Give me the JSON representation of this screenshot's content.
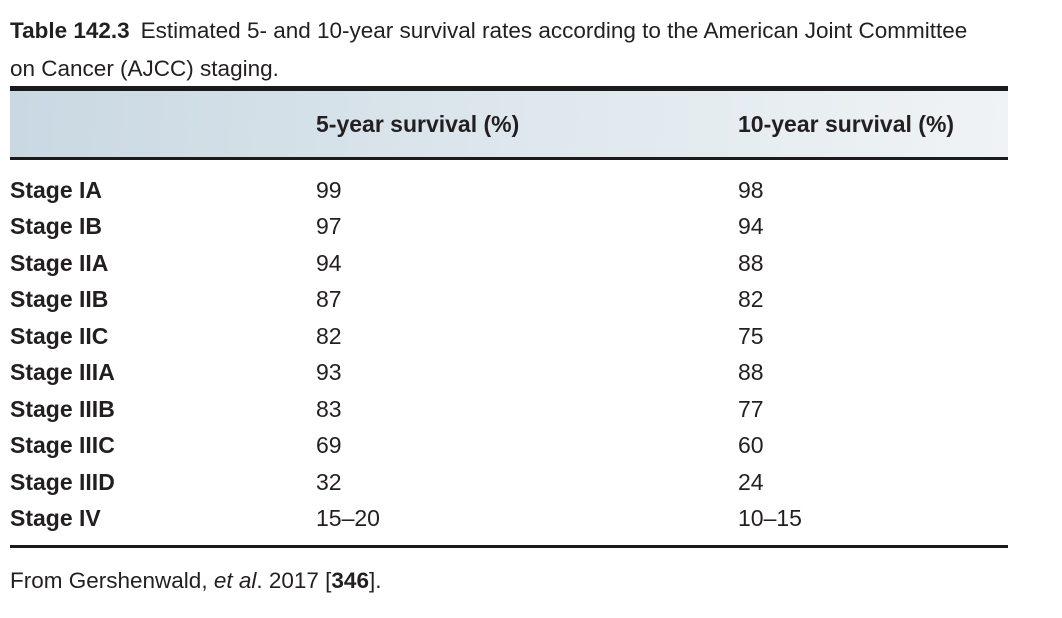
{
  "caption": {
    "label": "Table 142.3",
    "text": "Estimated 5- and 10-year survival rates according to the American Joint Committee on Cancer (AJCC) staging."
  },
  "table": {
    "columns": [
      "",
      "5-year survival (%)",
      "10-year survival (%)"
    ],
    "rows": [
      {
        "stage": "Stage IA",
        "five_year": "99",
        "ten_year": "98"
      },
      {
        "stage": "Stage IB",
        "five_year": "97",
        "ten_year": "94"
      },
      {
        "stage": "Stage IIA",
        "five_year": "94",
        "ten_year": "88"
      },
      {
        "stage": "Stage IIB",
        "five_year": "87",
        "ten_year": "82"
      },
      {
        "stage": "Stage IIC",
        "five_year": "82",
        "ten_year": "75"
      },
      {
        "stage": "Stage IIIA",
        "five_year": "93",
        "ten_year": "88"
      },
      {
        "stage": "Stage IIIB",
        "five_year": "83",
        "ten_year": "77"
      },
      {
        "stage": "Stage IIIC",
        "five_year": "69",
        "ten_year": "60"
      },
      {
        "stage": "Stage IIID",
        "five_year": "32",
        "ten_year": "24"
      },
      {
        "stage": "Stage IV",
        "five_year": "15–20",
        "ten_year": "10–15"
      }
    ]
  },
  "source": {
    "prefix": "From Gershenwald, ",
    "et_al": "et al",
    "middle": ". 2017 [",
    "reference": "346",
    "suffix": "]."
  },
  "colors": {
    "text": "#231f20",
    "rule": "#1b1b1b",
    "header_gradient_start": "#c9d8e2",
    "header_gradient_end": "#f0f3f5"
  }
}
